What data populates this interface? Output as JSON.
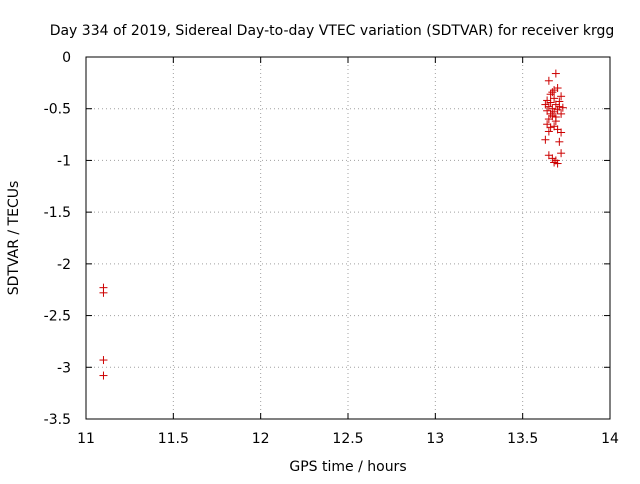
{
  "chart_data": {
    "type": "scatter",
    "title": "Day 334 of 2019, Sidereal Day-to-day VTEC variation (SDTVAR) for receiver krgg",
    "xlabel": "GPS time / hours",
    "ylabel": "SDTVAR / TECUs",
    "xlim": [
      11,
      14
    ],
    "ylim": [
      -3.5,
      0
    ],
    "x_ticks": [
      "11",
      "11.5",
      "12",
      "12.5",
      "13",
      "13.5",
      "14"
    ],
    "y_ticks": [
      "0",
      "-0.5",
      "-1",
      "-1.5",
      "-2",
      "-2.5",
      "-3",
      "-3.5"
    ],
    "grid": true,
    "marker": "+",
    "series": [
      {
        "name": "SDTVAR",
        "color": "#cc0000",
        "points": [
          [
            11.1,
            -2.23
          ],
          [
            11.1,
            -2.28
          ],
          [
            11.1,
            -2.93
          ],
          [
            11.1,
            -3.08
          ],
          [
            13.65,
            -0.23
          ],
          [
            13.69,
            -0.16
          ],
          [
            13.67,
            -0.34
          ],
          [
            13.7,
            -0.3
          ],
          [
            13.72,
            -0.38
          ],
          [
            13.64,
            -0.42
          ],
          [
            13.66,
            -0.44
          ],
          [
            13.68,
            -0.4
          ],
          [
            13.63,
            -0.46
          ],
          [
            13.65,
            -0.48
          ],
          [
            13.67,
            -0.5
          ],
          [
            13.69,
            -0.46
          ],
          [
            13.71,
            -0.48
          ],
          [
            13.73,
            -0.49
          ],
          [
            13.64,
            -0.52
          ],
          [
            13.66,
            -0.55
          ],
          [
            13.68,
            -0.53
          ],
          [
            13.7,
            -0.51
          ],
          [
            13.72,
            -0.55
          ],
          [
            13.67,
            -0.57
          ],
          [
            13.65,
            -0.6
          ],
          [
            13.69,
            -0.58
          ],
          [
            13.64,
            -0.65
          ],
          [
            13.66,
            -0.68
          ],
          [
            13.68,
            -0.67
          ],
          [
            13.7,
            -0.7
          ],
          [
            13.72,
            -0.73
          ],
          [
            13.65,
            -0.72
          ],
          [
            13.63,
            -0.8
          ],
          [
            13.71,
            -0.82
          ],
          [
            13.72,
            -0.93
          ],
          [
            13.65,
            -0.95
          ],
          [
            13.67,
            -0.98
          ],
          [
            13.69,
            -1.0
          ],
          [
            13.7,
            -1.03
          ],
          [
            13.68,
            -1.02
          ],
          [
            13.66,
            -0.36
          ],
          [
            13.68,
            -0.32
          ],
          [
            13.71,
            -0.43
          ],
          [
            13.69,
            -0.62
          ]
        ]
      }
    ]
  }
}
